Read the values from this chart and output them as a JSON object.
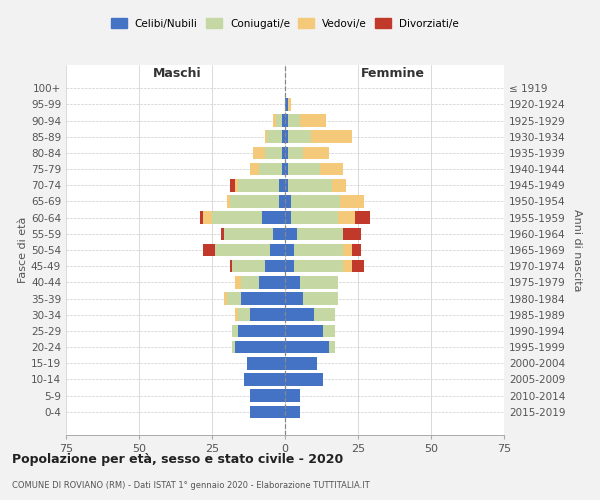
{
  "age_groups": [
    "0-4",
    "5-9",
    "10-14",
    "15-19",
    "20-24",
    "25-29",
    "30-34",
    "35-39",
    "40-44",
    "45-49",
    "50-54",
    "55-59",
    "60-64",
    "65-69",
    "70-74",
    "75-79",
    "80-84",
    "85-89",
    "90-94",
    "95-99",
    "100+"
  ],
  "birth_years": [
    "2015-2019",
    "2010-2014",
    "2005-2009",
    "2000-2004",
    "1995-1999",
    "1990-1994",
    "1985-1989",
    "1980-1984",
    "1975-1979",
    "1970-1974",
    "1965-1969",
    "1960-1964",
    "1955-1959",
    "1950-1954",
    "1945-1949",
    "1940-1944",
    "1935-1939",
    "1930-1934",
    "1925-1929",
    "1920-1924",
    "≤ 1919"
  ],
  "colors": {
    "celibi": "#4472C4",
    "coniugati": "#C5D8A4",
    "vedovi": "#F5C97A",
    "divorziati": "#C0392B"
  },
  "maschi": {
    "celibi": [
      12,
      12,
      14,
      13,
      17,
      16,
      12,
      15,
      9,
      7,
      5,
      4,
      8,
      2,
      2,
      1,
      1,
      1,
      1,
      0,
      0
    ],
    "coniugati": [
      0,
      0,
      0,
      0,
      1,
      2,
      4,
      5,
      6,
      11,
      19,
      17,
      17,
      17,
      14,
      8,
      6,
      5,
      2,
      0,
      0
    ],
    "vedovi": [
      0,
      0,
      0,
      0,
      0,
      0,
      1,
      1,
      2,
      0,
      0,
      0,
      3,
      1,
      1,
      3,
      4,
      1,
      1,
      0,
      0
    ],
    "divorziati": [
      0,
      0,
      0,
      0,
      0,
      0,
      0,
      0,
      0,
      1,
      4,
      1,
      1,
      0,
      2,
      0,
      0,
      0,
      0,
      0,
      0
    ]
  },
  "femmine": {
    "celibi": [
      5,
      5,
      13,
      11,
      15,
      13,
      10,
      6,
      5,
      3,
      3,
      4,
      2,
      2,
      1,
      1,
      1,
      1,
      1,
      1,
      0
    ],
    "coniugati": [
      0,
      0,
      0,
      0,
      2,
      4,
      7,
      12,
      13,
      17,
      17,
      16,
      16,
      17,
      15,
      11,
      5,
      8,
      4,
      0,
      0
    ],
    "vedovi": [
      0,
      0,
      0,
      0,
      0,
      0,
      0,
      0,
      0,
      3,
      3,
      0,
      6,
      8,
      5,
      8,
      9,
      14,
      9,
      1,
      0
    ],
    "divorziati": [
      0,
      0,
      0,
      0,
      0,
      0,
      0,
      0,
      0,
      4,
      3,
      6,
      5,
      0,
      0,
      0,
      0,
      0,
      0,
      0,
      0
    ]
  },
  "title": "Popolazione per età, sesso e stato civile - 2020",
  "subtitle": "COMUNE DI ROVIANO (RM) - Dati ISTAT 1° gennaio 2020 - Elaborazione TUTTITALIA.IT",
  "xlabel_maschi": "Maschi",
  "xlabel_femmine": "Femmine",
  "ylabel": "Fasce di età",
  "ylabel_right": "Anni di nascita",
  "xlim": 75,
  "legend_labels": [
    "Celibi/Nubili",
    "Coniugati/e",
    "Vedovi/e",
    "Divorziati/e"
  ],
  "bg_color": "#F2F2F2",
  "plot_bg_color": "#FFFFFF"
}
